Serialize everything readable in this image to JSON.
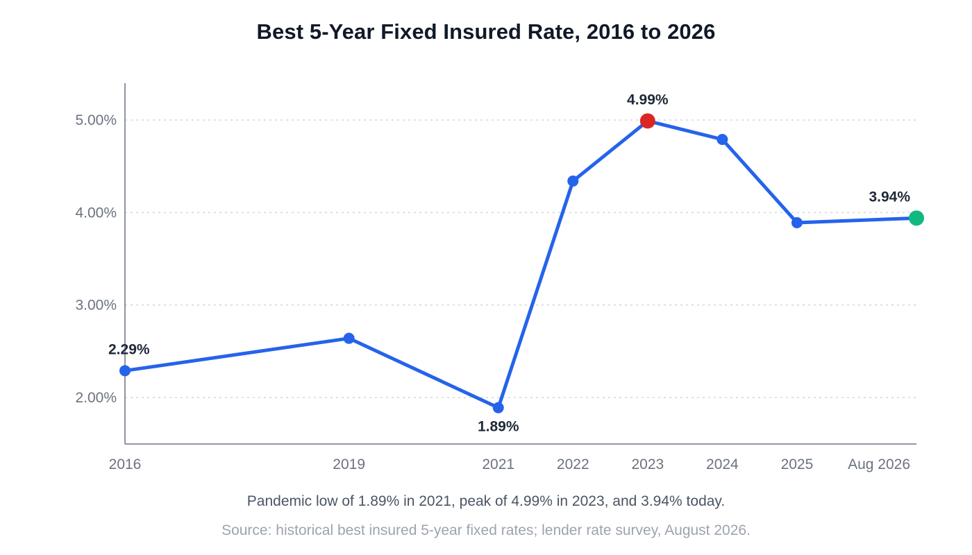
{
  "chart_data": {
    "type": "line",
    "title": "Best 5-Year Fixed Insured Rate, 2016 to 2026",
    "xlabel": "",
    "ylabel": "",
    "x": [
      2016,
      2019,
      2021,
      2022,
      2023,
      2024,
      2025,
      2026.6
    ],
    "x_tick_labels": [
      "2016",
      "2019",
      "2021",
      "2022",
      "2023",
      "2024",
      "2025",
      "Aug 2026"
    ],
    "series": [
      {
        "values": [
          2.29,
          2.64,
          1.89,
          4.34,
          4.99,
          4.79,
          3.89,
          3.94
        ]
      }
    ],
    "ylim": [
      1.5,
      5.4
    ],
    "y_ticks": [
      2.0,
      3.0,
      4.0,
      5.0
    ],
    "y_tick_labels": [
      "2.00%",
      "3.00%",
      "4.00%",
      "5.00%"
    ],
    "grid": "horizontal dotted",
    "annotations": [
      {
        "index": 0,
        "text": "2.29%",
        "position": "above"
      },
      {
        "index": 2,
        "text": "1.89%",
        "position": "below"
      },
      {
        "index": 4,
        "text": "4.99%",
        "position": "above"
      },
      {
        "index": 7,
        "text": "3.94%",
        "position": "above-left"
      }
    ],
    "highlights": [
      {
        "index": 4,
        "role": "peak",
        "color": "#dc2626"
      },
      {
        "index": 7,
        "role": "current",
        "color": "#10b981"
      }
    ],
    "colors": {
      "line": "#2563eb",
      "grid": "#d1d5db",
      "axis": "#6b7280"
    }
  },
  "caption": "Pandemic low of 1.89% in 2021, peak of 4.99% in 2023, and 3.94% today.",
  "source": "Source: historical best insured 5-year fixed rates; lender rate survey, August 2026."
}
